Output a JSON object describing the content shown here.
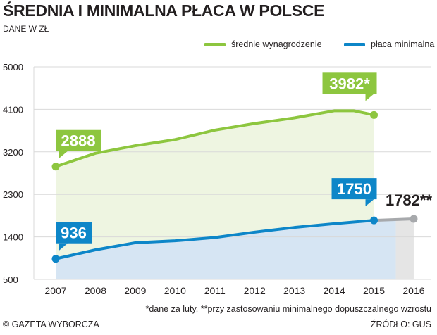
{
  "header": {
    "title": "ŚREDNIA I MINIMALNA PŁACA W POLSCE",
    "subtitle": "DANE W ZŁ"
  },
  "footer": {
    "note": "*dane za luty, **przy zastosowaniu minimalnego dopuszczalnego wzrostu",
    "copyright": "© GAZETA WYBORCZA",
    "source": "ŹRÓDŁO: GUS"
  },
  "colors": {
    "green": "#8dc63f",
    "green_fill": "#eef5e1",
    "blue": "#0d86c8",
    "blue_fill": "#d6e5f3",
    "grey": "#a7a9ac",
    "grey_fill": "#e5e5e5",
    "grid": "#d9d9d9"
  },
  "chart_data": {
    "type": "line",
    "title": "ŚREDNIA I MINIMALNA PŁACA W POLSCE",
    "ylabel": "DANE W ZŁ",
    "x": [
      2007,
      2008,
      2009,
      2010,
      2011,
      2012,
      2013,
      2014,
      2015,
      2016
    ],
    "x_tick_labels": [
      "2007",
      "2008",
      "2009",
      "2010",
      "2011",
      "2012",
      "2013",
      "2014",
      "2015",
      "2016"
    ],
    "y_ticks": [
      500,
      1400,
      2300,
      3200,
      4100,
      5000
    ],
    "y_tick_labels": [
      "500",
      "1400",
      "2300",
      "3200",
      "4100",
      "5000"
    ],
    "ylim": [
      500,
      5000
    ],
    "grid": true,
    "legend_position": "top-right",
    "series": [
      {
        "name": "średnie wynagrodzenie",
        "color": "#8dc63f",
        "x": [
          2007,
          2007.5,
          2008,
          2009,
          2010,
          2011,
          2012,
          2013,
          2014,
          2014.5,
          2015
        ],
        "values": [
          2888,
          3030,
          3170,
          3330,
          3460,
          3660,
          3800,
          3920,
          4070,
          4070,
          3982
        ]
      },
      {
        "name": "płaca minimalna",
        "color": "#0d86c8",
        "x": [
          2007,
          2008,
          2009,
          2010,
          2011,
          2012,
          2013,
          2014,
          2015
        ],
        "values": [
          936,
          1126,
          1276,
          1317,
          1386,
          1500,
          1600,
          1680,
          1750
        ]
      },
      {
        "name": "",
        "color": "#a7a9ac",
        "x": [
          2015,
          2016
        ],
        "values": [
          1750,
          1782
        ]
      }
    ],
    "annotations": [
      {
        "text": "2888",
        "x": 2007,
        "y": 2888,
        "color": "#8dc63f",
        "placement": "above-right"
      },
      {
        "text": "3982*",
        "x": 2015,
        "y": 3982,
        "color": "#8dc63f",
        "placement": "above-left"
      },
      {
        "text": "936",
        "x": 2007,
        "y": 936,
        "color": "#0d86c8",
        "placement": "above-right"
      },
      {
        "text": "1750",
        "x": 2015,
        "y": 1750,
        "color": "#0d86c8",
        "placement": "above-left"
      },
      {
        "text": "1782**",
        "x": 2016,
        "y": 1782,
        "color": "#231f20",
        "placement": "above-plain"
      }
    ]
  }
}
